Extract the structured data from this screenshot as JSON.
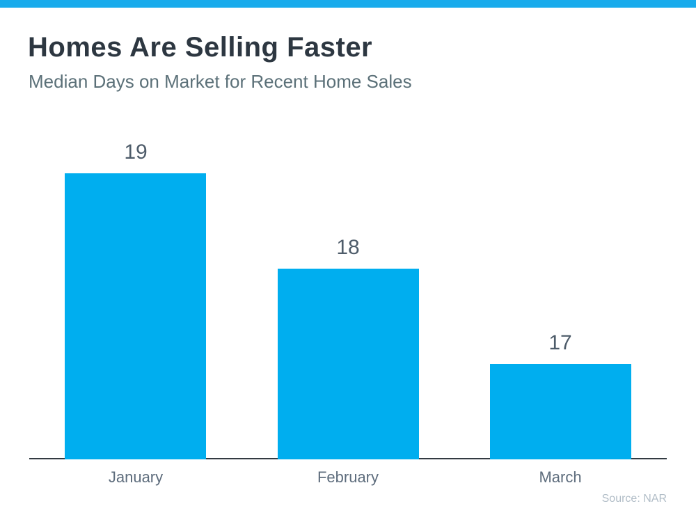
{
  "accent_color": "#18abec",
  "bar_color": "#00aeef",
  "chart_data": {
    "type": "bar",
    "title": "Homes Are Selling Faster",
    "subtitle": "Median Days on Market for Recent Home Sales",
    "categories": [
      "January",
      "February",
      "March"
    ],
    "values": [
      19,
      18,
      17
    ],
    "xlabel": "",
    "ylabel": "",
    "ylim": [
      16,
      19.5
    ],
    "grid": false,
    "legend": "none",
    "data_labels": true,
    "source": "Source: NAR"
  }
}
